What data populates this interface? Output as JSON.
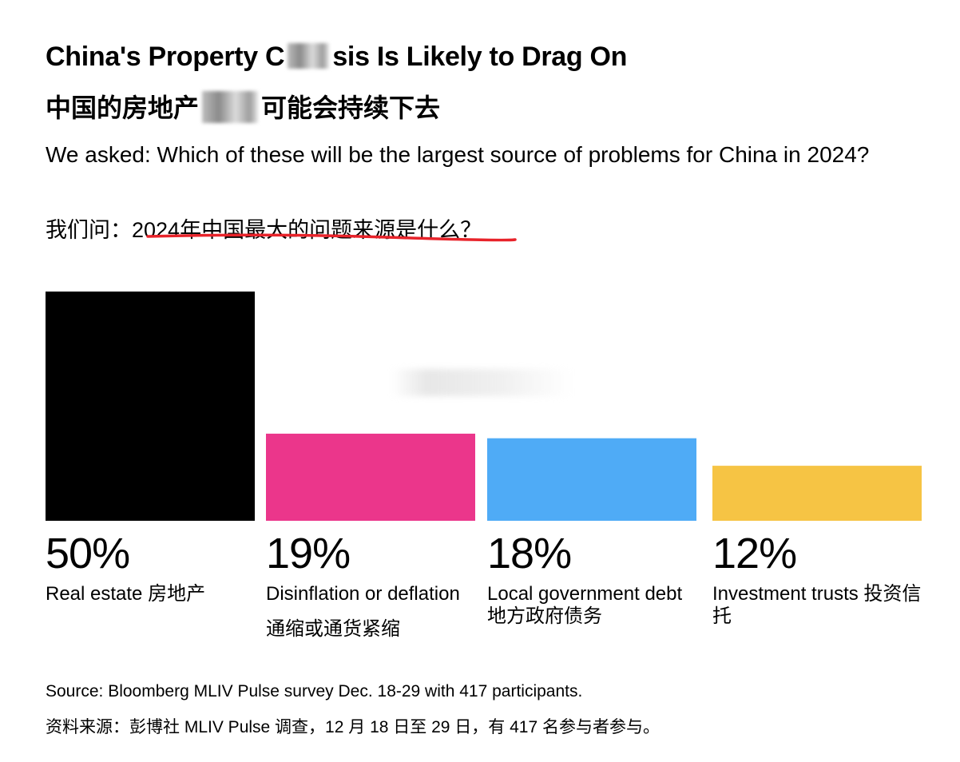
{
  "header": {
    "title_part1": "China's Property C",
    "title_part2": "sis Is Likely to Drag On",
    "title_zh_part1": "中国的房地产",
    "title_zh_part2": "可能会持续下去",
    "subtitle": "We asked: Which of these will be the largest source of problems for China in 2024?",
    "subtitle_zh_prefix": "我们问：",
    "subtitle_zh_question": "2024年中国最大的问题来源是什么",
    "subtitle_zh_suffix": "？",
    "underline_color": "#e8232a"
  },
  "chart_data": {
    "type": "bar",
    "categories": [
      "Real estate 房地产",
      "Disinflation or deflation",
      "Local government debt 地方政府债务",
      "Investment trusts 投资信托"
    ],
    "values": [
      50,
      19,
      18,
      12
    ],
    "value_labels": [
      "50%",
      "19%",
      "18%",
      "12%"
    ],
    "category_extra_zh": [
      "",
      "通缩或通货紧缩",
      "",
      ""
    ],
    "colors": [
      "#000000",
      "#eb368b",
      "#4fabf6",
      "#f6c444"
    ],
    "ylim": [
      0,
      50
    ],
    "grid": false
  },
  "footer": {
    "source": "Source: Bloomberg MLIV Pulse survey Dec. 18-29 with 417 participants.",
    "source_zh": "资料来源：彭博社 MLIV Pulse 调查，12 月 18 日至 29 日，有 417 名参与者参与。"
  }
}
